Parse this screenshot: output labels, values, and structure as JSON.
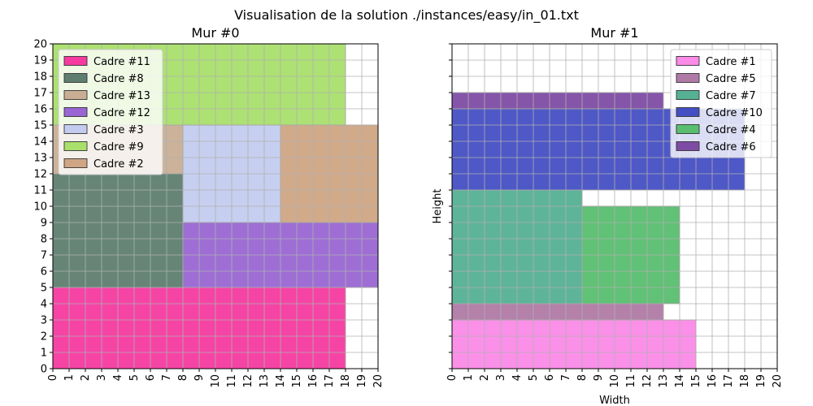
{
  "suptitle": "Visualisation de la solution ./instances/easy/in_01.txt",
  "chart_data": [
    {
      "type": "rectangles",
      "title": "Mur #0",
      "xlabel": "",
      "ylabel": "",
      "xlim": [
        0,
        20
      ],
      "ylim": [
        0,
        20
      ],
      "ticks": [
        "0",
        "1",
        "2",
        "3",
        "4",
        "5",
        "6",
        "7",
        "8",
        "9",
        "10",
        "11",
        "12",
        "13",
        "14",
        "15",
        "16",
        "17",
        "18",
        "19",
        "20"
      ],
      "grid": true,
      "legend_position": "top-left",
      "rects": [
        {
          "name": "Cadre #11",
          "x": 0,
          "y": 0,
          "w": 18,
          "h": 5,
          "color": "#f53aa0"
        },
        {
          "name": "Cadre #8",
          "x": 0,
          "y": 5,
          "w": 8,
          "h": 7,
          "color": "#5e7e70"
        },
        {
          "name": "Cadre #13",
          "x": 0,
          "y": 12,
          "w": 8,
          "h": 3,
          "color": "#c8ae93"
        },
        {
          "name": "Cadre #12",
          "x": 8,
          "y": 5,
          "w": 12,
          "h": 4,
          "color": "#9966d3"
        },
        {
          "name": "Cadre #3",
          "x": 8,
          "y": 9,
          "w": 6,
          "h": 6,
          "color": "#c3ccef"
        },
        {
          "name": "Cadre #9",
          "x": 0,
          "y": 15,
          "w": 18,
          "h": 5,
          "color": "#a9df6b"
        },
        {
          "name": "Cadre #2",
          "x": 14,
          "y": 9,
          "w": 6,
          "h": 6,
          "color": "#cfa584"
        }
      ]
    },
    {
      "type": "rectangles",
      "title": "Mur #1",
      "xlabel": "Width",
      "ylabel": "Height",
      "xlim": [
        0,
        20
      ],
      "ylim": [
        0,
        20
      ],
      "ticks": [
        "0",
        "1",
        "2",
        "3",
        "4",
        "5",
        "6",
        "7",
        "8",
        "9",
        "10",
        "11",
        "12",
        "13",
        "14",
        "15",
        "16",
        "17",
        "18",
        "19",
        "20"
      ],
      "grid": true,
      "legend_position": "top-right",
      "rects": [
        {
          "name": "Cadre #1",
          "x": 0,
          "y": 0,
          "w": 15,
          "h": 3,
          "color": "#fb8ae8"
        },
        {
          "name": "Cadre #5",
          "x": 0,
          "y": 3,
          "w": 13,
          "h": 1,
          "color": "#b07aa6"
        },
        {
          "name": "Cadre #7",
          "x": 0,
          "y": 4,
          "w": 8,
          "h": 7,
          "color": "#55b094"
        },
        {
          "name": "Cadre #10",
          "x": 0,
          "y": 11,
          "w": 18,
          "h": 5,
          "color": "#444fc3"
        },
        {
          "name": "Cadre #4",
          "x": 8,
          "y": 4,
          "w": 6,
          "h": 6,
          "color": "#59be6f"
        },
        {
          "name": "Cadre #6",
          "x": 0,
          "y": 16,
          "w": 13,
          "h": 1,
          "color": "#7e4ca4"
        }
      ]
    }
  ]
}
